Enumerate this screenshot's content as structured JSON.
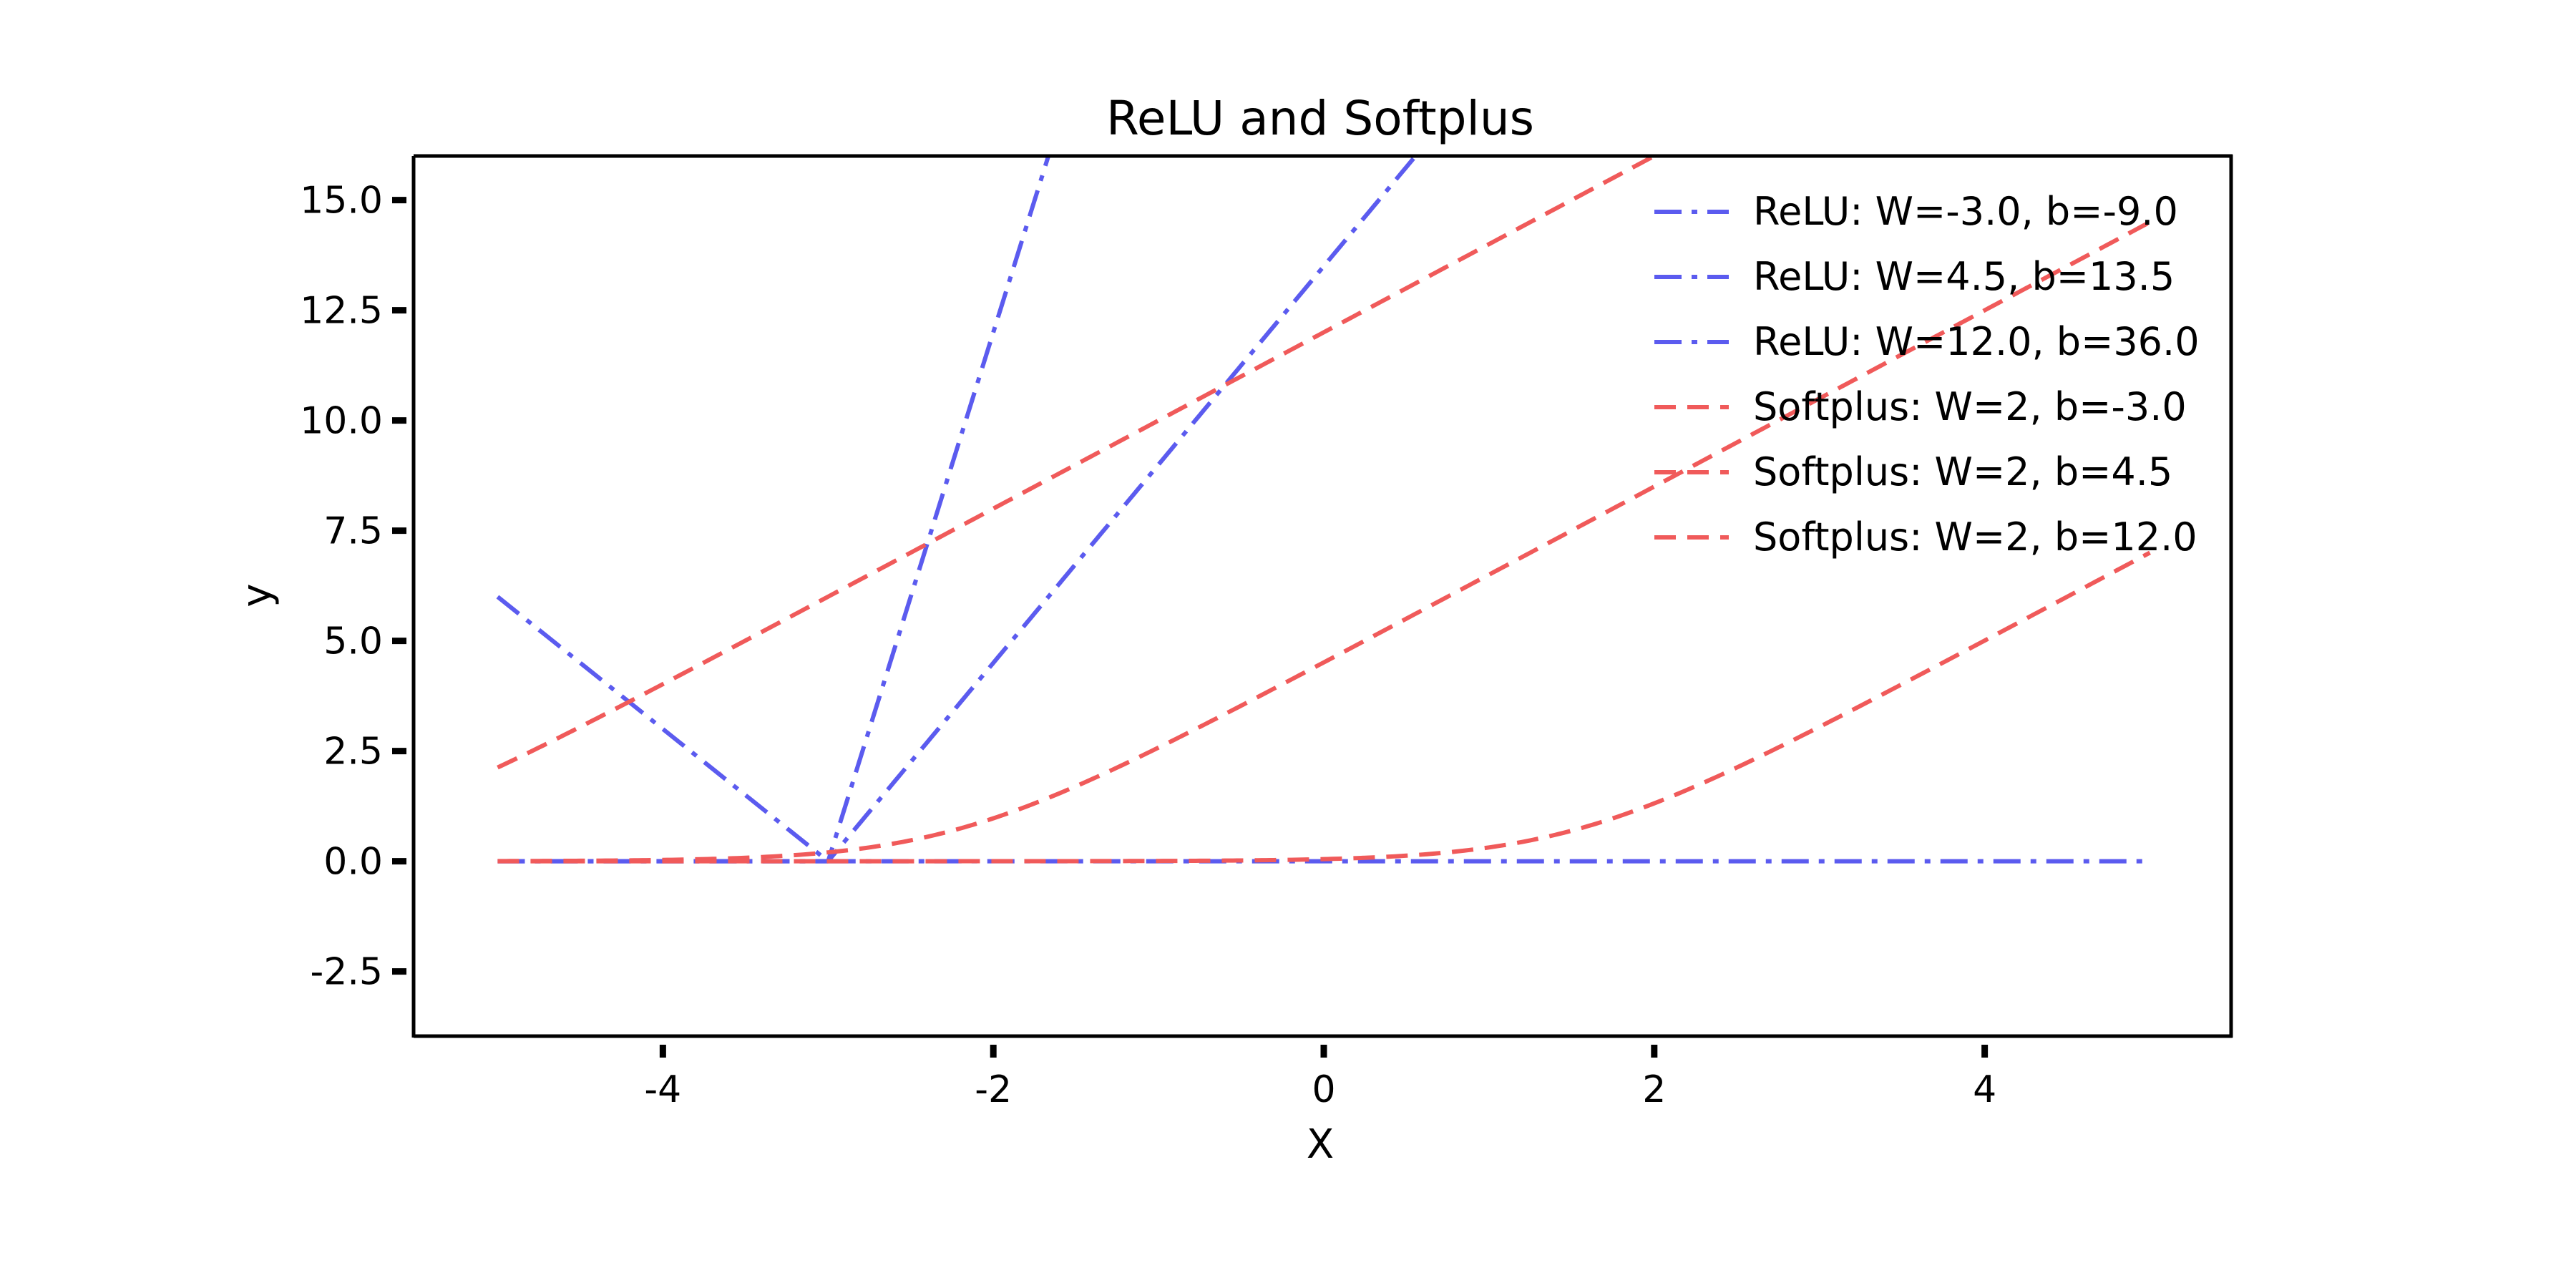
{
  "chart_data": {
    "type": "line",
    "title": "ReLU and Softplus",
    "xlabel": "X",
    "ylabel": "y",
    "xlim": [
      -5.5,
      5.5
    ],
    "ylim": [
      -4.0,
      16.0
    ],
    "x_ticks": [
      -4,
      -2,
      0,
      2,
      4
    ],
    "x_tick_labels": [
      "-4",
      "-2",
      "0",
      "2",
      "4"
    ],
    "y_ticks": [
      -2.5,
      0.0,
      2.5,
      5.0,
      7.5,
      10.0,
      12.5,
      15.0
    ],
    "y_tick_labels": [
      "-2.5",
      "0.0",
      "2.5",
      "5.0",
      "7.5",
      "10.0",
      "12.5",
      "15.0"
    ],
    "x_range": [
      -5,
      5
    ],
    "legend_position": "top-right",
    "grid": false,
    "series": [
      {
        "name": "ReLU: W=-3.0, b=-9.0",
        "kind": "relu",
        "W": -3.0,
        "b": -9.0,
        "color": "#5b5bef",
        "style": "dashdot"
      },
      {
        "name": "ReLU: W=4.5, b=13.5",
        "kind": "relu",
        "W": 4.5,
        "b": 13.5,
        "color": "#5b5bef",
        "style": "dashdot"
      },
      {
        "name": "ReLU: W=12.0, b=36.0",
        "kind": "relu",
        "W": 12.0,
        "b": 36.0,
        "color": "#5b5bef",
        "style": "dashdot"
      },
      {
        "name": "Softplus: W=2, b=-3.0",
        "kind": "softplus",
        "W": 2,
        "b": -3.0,
        "color": "#f05a5a",
        "style": "dashed"
      },
      {
        "name": "Softplus: W=2, b=4.5",
        "kind": "softplus",
        "W": 2,
        "b": 4.5,
        "color": "#f05a5a",
        "style": "dashed"
      },
      {
        "name": "Softplus: W=2, b=12.0",
        "kind": "softplus",
        "W": 2,
        "b": 12.0,
        "color": "#f05a5a",
        "style": "dashed"
      }
    ]
  }
}
